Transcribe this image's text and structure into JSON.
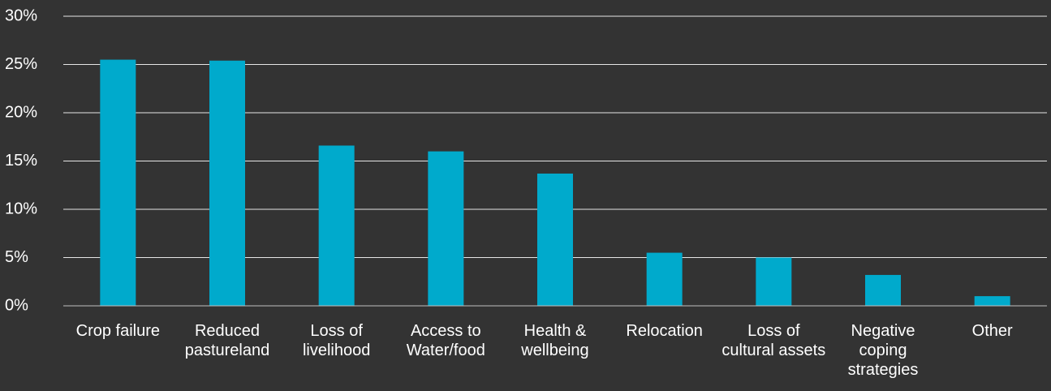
{
  "chart_data": {
    "type": "bar",
    "categories": [
      "Crop failure",
      "Reduced pastureland",
      "Loss of livelihood",
      "Access to Water/food",
      "Health & wellbeing",
      "Relocation",
      "Loss of cultural assets",
      "Negative coping strategies",
      "Other"
    ],
    "values": [
      25.5,
      25.4,
      16.6,
      16.0,
      13.7,
      5.5,
      5.0,
      3.2,
      1.0
    ],
    "color": "#00aacc",
    "ylim": [
      0,
      30
    ],
    "yticks": [
      {
        "value": 0,
        "label": "0%"
      },
      {
        "value": 5,
        "label": "5%"
      },
      {
        "value": 10,
        "label": "10%"
      },
      {
        "value": 15,
        "label": "15%"
      },
      {
        "value": 20,
        "label": "20%"
      },
      {
        "value": 25,
        "label": "25%"
      },
      {
        "value": 30,
        "label": "30%"
      }
    ],
    "grid": true
  }
}
